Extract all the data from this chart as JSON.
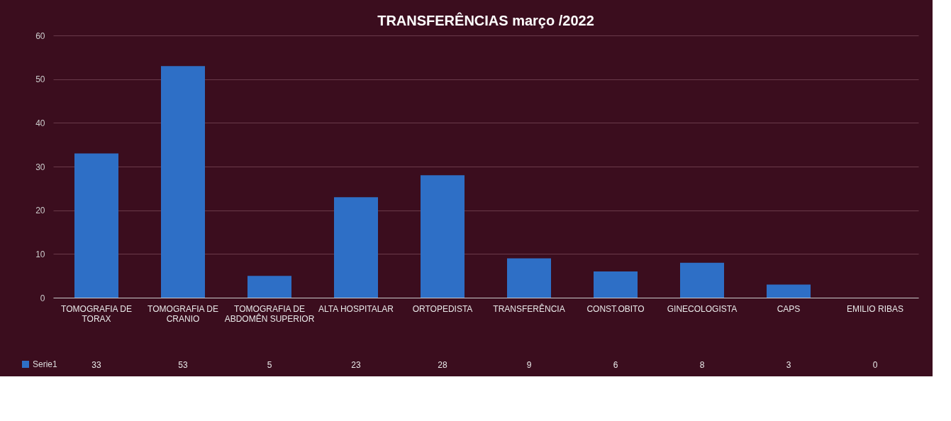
{
  "chart_data": {
    "type": "bar",
    "title": "TRANSFERÊNCIAS março /2022",
    "categories": [
      "TOMOGRAFIA DE TORAX",
      "TOMOGRAFIA DE CRANIO",
      "TOMOGRAFIA DE ABDOMÊN SUPERIOR",
      "ALTA HOSPITALAR",
      "ORTOPEDISTA",
      "TRANSFERÊNCIA",
      "CONST.OBITO",
      "GINECOLOGISTA",
      "CAPS",
      "EMILIO RIBAS"
    ],
    "series": [
      {
        "name": "Serie1",
        "color": "#2e6fc6",
        "values": [
          33,
          53,
          5,
          23,
          28,
          9,
          6,
          8,
          3,
          0
        ]
      }
    ],
    "ylim": [
      0,
      60
    ],
    "yticks": [
      0,
      10,
      20,
      30,
      40,
      50,
      60
    ],
    "grid": "y",
    "data_labels": true,
    "legend": "bottom left"
  }
}
